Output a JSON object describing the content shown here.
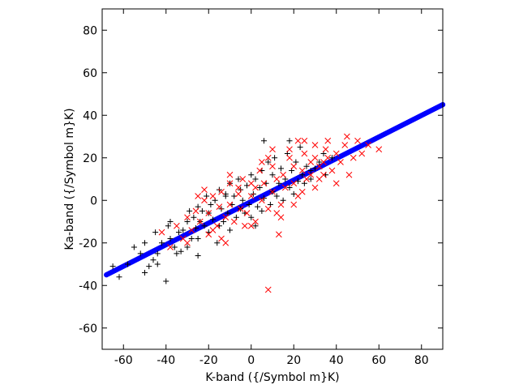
{
  "chart_data": {
    "type": "scatter",
    "title": "",
    "xlabel": "K-band ({/Symbol m}K)",
    "ylabel": "Ka-band ({/Symbol m}K)",
    "xlim": [
      -70,
      90
    ],
    "ylim": [
      -70,
      90
    ],
    "xticks": [
      -60,
      -40,
      -20,
      0,
      20,
      40,
      60,
      80
    ],
    "yticks": [
      -60,
      -40,
      -20,
      0,
      20,
      40,
      60,
      80
    ],
    "xtick_labels": [
      "-60",
      "-40",
      "-20",
      "0",
      "20",
      "40",
      "60",
      "80"
    ],
    "ytick_labels": [
      "-60",
      "-40",
      "-20",
      "0",
      "20",
      "40",
      "60",
      "80"
    ],
    "grid": false,
    "legend": "none",
    "series": [
      {
        "marker": "plus",
        "color": "#000000",
        "x": [
          -65,
          -62,
          -58,
          -55,
          -52,
          -50,
          -48,
          -46,
          -45,
          -44,
          -42,
          -40,
          -39,
          -38,
          -36,
          -35,
          -34,
          -33,
          -32,
          -30,
          -30,
          -29,
          -28,
          -27,
          -26,
          -25,
          -25,
          -24,
          -23,
          -22,
          -21,
          -20,
          -20,
          -19,
          -18,
          -17,
          -16,
          -15,
          -15,
          -14,
          -13,
          -12,
          -11,
          -10,
          -10,
          -9,
          -8,
          -7,
          -6,
          -5,
          -5,
          -4,
          -3,
          -2,
          -1,
          0,
          0,
          1,
          2,
          3,
          4,
          5,
          5,
          6,
          7,
          8,
          9,
          10,
          10,
          11,
          12,
          13,
          14,
          15,
          16,
          17,
          18,
          19,
          20,
          21,
          22,
          23,
          24,
          25,
          26,
          28,
          30,
          32,
          34,
          35,
          38,
          -38,
          -44,
          -25,
          6,
          -12,
          2,
          18,
          -50,
          28
        ],
        "y": [
          -31,
          -36,
          -30,
          -22,
          -25,
          -34,
          -31,
          -28,
          -15,
          -25,
          -20,
          -38,
          -12,
          -18,
          -22,
          -25,
          -15,
          -24,
          -14,
          -10,
          -22,
          -5,
          -18,
          -8,
          -13,
          -3,
          -18,
          -10,
          -5,
          -12,
          2,
          -6,
          -15,
          -2,
          -9,
          0,
          -20,
          -12,
          5,
          -4,
          -10,
          3,
          -6,
          -14,
          8,
          -2,
          2,
          -8,
          10,
          -4,
          5,
          0,
          -6,
          7,
          -2,
          12,
          -8,
          3,
          10,
          -3,
          6,
          14,
          -5,
          1,
          8,
          18,
          -2,
          4,
          12,
          20,
          2,
          8,
          15,
          0,
          10,
          22,
          6,
          14,
          3,
          18,
          9,
          25,
          12,
          8,
          16,
          10,
          15,
          18,
          22,
          12,
          20,
          -10,
          -30,
          -26,
          28,
          2,
          -12,
          28,
          -20,
          14
        ]
      },
      {
        "marker": "x",
        "color": "#ff0000",
        "x": [
          -42,
          -38,
          -35,
          -32,
          -30,
          -28,
          -26,
          -24,
          -22,
          -20,
          -20,
          -18,
          -16,
          -15,
          -14,
          -12,
          -10,
          -10,
          -8,
          -6,
          -5,
          -4,
          -2,
          0,
          0,
          2,
          4,
          5,
          6,
          8,
          10,
          10,
          12,
          14,
          15,
          16,
          18,
          20,
          20,
          22,
          24,
          25,
          26,
          28,
          30,
          30,
          32,
          34,
          35,
          36,
          38,
          40,
          42,
          44,
          45,
          48,
          50,
          52,
          55,
          60,
          -25,
          -18,
          -10,
          -3,
          5,
          12,
          18,
          24,
          30,
          -30,
          -22,
          -14,
          -6,
          2,
          8,
          14,
          22,
          28,
          34,
          8,
          13,
          40,
          46,
          36,
          20,
          -12,
          0,
          10,
          25,
          32
        ],
        "y": [
          -15,
          -22,
          -12,
          -18,
          -8,
          -14,
          -5,
          -10,
          0,
          -16,
          -6,
          2,
          -12,
          -3,
          4,
          -8,
          -2,
          8,
          -10,
          3,
          -4,
          10,
          -6,
          2,
          -12,
          6,
          14,
          0,
          8,
          -4,
          4,
          16,
          10,
          -2,
          12,
          6,
          20,
          8,
          16,
          2,
          14,
          22,
          10,
          18,
          6,
          26,
          16,
          12,
          24,
          20,
          14,
          22,
          18,
          26,
          30,
          20,
          28,
          22,
          26,
          24,
          2,
          -14,
          12,
          -12,
          18,
          -6,
          24,
          4,
          20,
          -20,
          5,
          -18,
          6,
          -10,
          20,
          -8,
          28,
          12,
          18,
          -42,
          -16,
          8,
          12,
          28,
          -2,
          -20,
          8,
          24,
          28,
          10
        ]
      },
      {
        "type": "line",
        "marker": "dots",
        "color": "#0000ff",
        "x": [
          -68,
          90
        ],
        "y": [
          -35,
          45
        ]
      }
    ]
  }
}
